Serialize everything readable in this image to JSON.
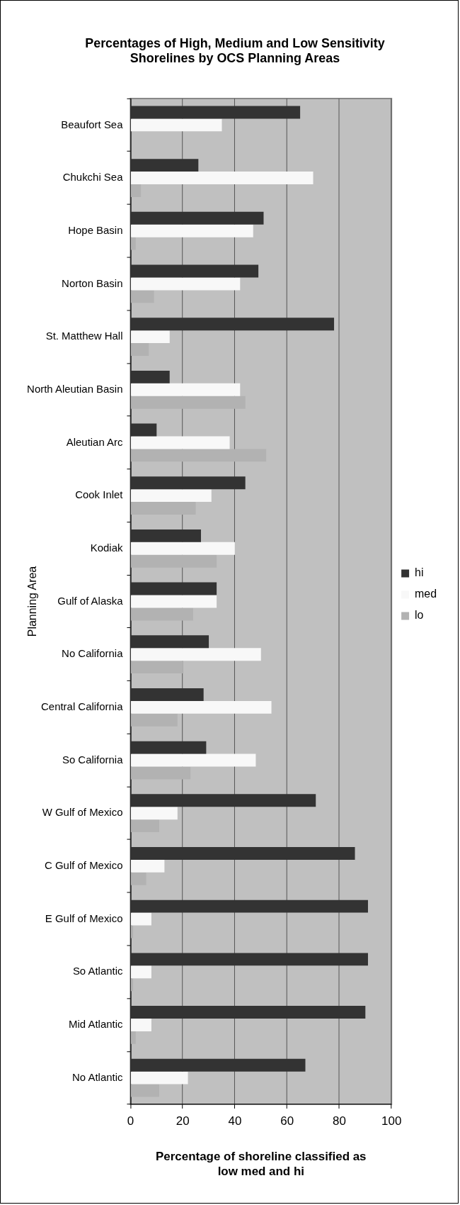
{
  "chart_data": {
    "type": "bar",
    "orientation": "horizontal",
    "title": "Percentages of High, Medium and Low Sensitivity Shorelines by OCS Planning Areas",
    "xlabel": "Percentage of shoreline classified as low med and hi",
    "ylabel": "Planning Area",
    "categories": [
      "Beaufort Sea",
      "Chukchi Sea",
      "Hope Basin",
      "Norton Basin",
      "St. Matthew Hall",
      "North Aleutian Basin",
      "Aleutian Arc",
      "Cook Inlet",
      "Kodiak",
      "Gulf of Alaska",
      "No California",
      "Central California",
      "So California",
      "W Gulf of Mexico",
      "C Gulf of Mexico",
      "E Gulf of Mexico",
      "So Atlantic",
      "Mid Atlantic",
      "No Atlantic"
    ],
    "series": [
      {
        "name": "hi",
        "color": "#333333",
        "values": [
          65,
          26,
          51,
          49,
          78,
          15,
          10,
          44,
          27,
          33,
          30,
          28,
          29,
          71,
          86,
          91,
          91,
          90,
          67
        ]
      },
      {
        "name": "med",
        "color": "#f8f8f8",
        "values": [
          35,
          70,
          47,
          42,
          15,
          42,
          38,
          31,
          40,
          33,
          50,
          54,
          48,
          18,
          13,
          8,
          8,
          8,
          22
        ]
      },
      {
        "name": "lo",
        "color": "#b2b2b2",
        "values": [
          0,
          4,
          2,
          9,
          7,
          44,
          52,
          25,
          33,
          24,
          20,
          18,
          23,
          11,
          6,
          1,
          1,
          2,
          11
        ]
      }
    ],
    "xlim": [
      0,
      100
    ],
    "xticks": [
      0,
      20,
      40,
      60,
      80,
      100
    ],
    "grid": "x",
    "legend": "right"
  }
}
